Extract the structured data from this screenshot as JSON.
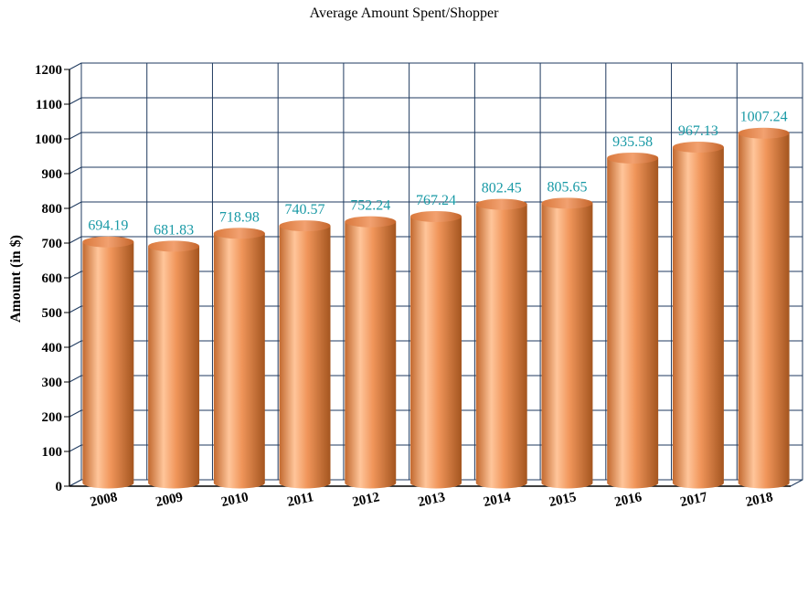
{
  "chart_data": {
    "type": "bar",
    "title": "Average Amount Spent/Shopper",
    "xlabel": "",
    "ylabel": "Amount (in $)",
    "ylim": [
      0,
      1200
    ],
    "yticks": [
      0,
      100,
      200,
      300,
      400,
      500,
      600,
      700,
      800,
      900,
      1000,
      1100,
      1200
    ],
    "categories": [
      "2008",
      "2009",
      "2010",
      "2011",
      "2012",
      "2013",
      "2014",
      "2015",
      "2016",
      "2017",
      "2018"
    ],
    "values": [
      694.19,
      681.83,
      718.98,
      740.57,
      752.24,
      767.24,
      802.45,
      805.65,
      935.58,
      967.13,
      1007.24
    ],
    "data_labels": [
      "694.19",
      "681.83",
      "718.98",
      "740.57",
      "752.24",
      "767.24",
      "802.45",
      "805.65",
      "935.58",
      "967.13",
      "1007.24"
    ],
    "grid": true,
    "colors": {
      "bar": "#e8894f",
      "bar_highlight": "#ffc9a0",
      "bar_dark": "#a85a2a",
      "grid": "#1f3a5f",
      "label": "#1a9aa6"
    }
  }
}
